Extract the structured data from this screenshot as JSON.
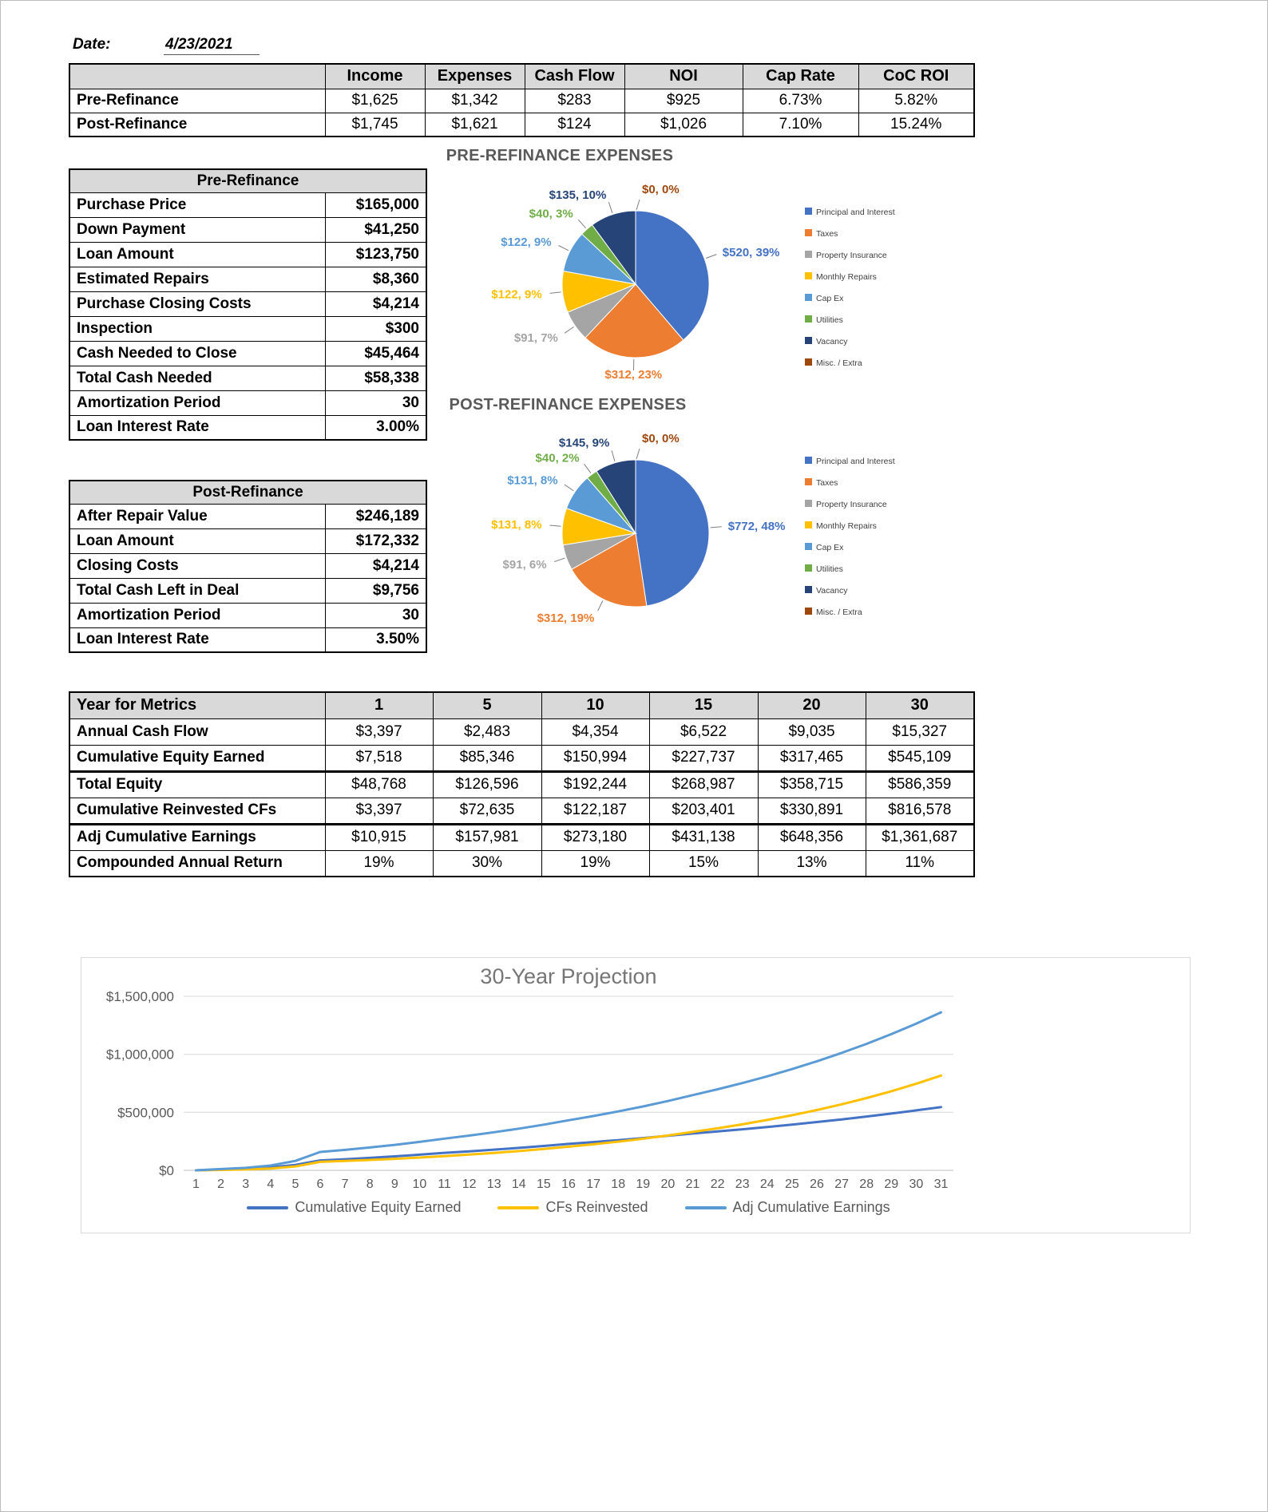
{
  "page": {
    "date_label": "Date:",
    "date_value": "4/23/2021"
  },
  "summary": {
    "columns": [
      "Income",
      "Expenses",
      "Cash Flow",
      "NOI",
      "Cap Rate",
      "CoC ROI"
    ],
    "rows": [
      {
        "label": "Pre-Refinance",
        "values": [
          "$1,625",
          "$1,342",
          "$283",
          "$925",
          "6.73%",
          "5.82%"
        ]
      },
      {
        "label": "Post-Refinance",
        "values": [
          "$1,745",
          "$1,621",
          "$124",
          "$1,026",
          "7.10%",
          "15.24%"
        ]
      }
    ]
  },
  "pre_refinance": {
    "title": "Pre-Refinance",
    "rows": [
      {
        "label": "Purchase Price",
        "value": "$165,000"
      },
      {
        "label": "Down Payment",
        "value": "$41,250"
      },
      {
        "label": "Loan Amount",
        "value": "$123,750"
      },
      {
        "label": "Estimated Repairs",
        "value": "$8,360"
      },
      {
        "label": "Purchase Closing Costs",
        "value": "$4,214"
      },
      {
        "label": "Inspection",
        "value": "$300"
      },
      {
        "label": "Cash Needed to Close",
        "value": "$45,464"
      },
      {
        "label": "Total Cash Needed",
        "value": "$58,338"
      },
      {
        "label": "Amortization Period",
        "value": "30"
      },
      {
        "label": "Loan Interest Rate",
        "value": "3.00%"
      }
    ]
  },
  "post_refinance": {
    "title": "Post-Refinance",
    "rows": [
      {
        "label": "After Repair Value",
        "value": "$246,189"
      },
      {
        "label": "Loan Amount",
        "value": "$172,332"
      },
      {
        "label": "Closing Costs",
        "value": "$4,214"
      },
      {
        "label": "Total Cash Left in Deal",
        "value": "$9,756"
      },
      {
        "label": "Amortization Period",
        "value": "30"
      },
      {
        "label": "Loan Interest Rate",
        "value": "3.50%"
      }
    ]
  },
  "metrics": {
    "header_label": "Year for Metrics",
    "years": [
      "1",
      "5",
      "10",
      "15",
      "20",
      "30"
    ],
    "rows": [
      {
        "label": "Annual Cash Flow",
        "values": [
          "$3,397",
          "$2,483",
          "$4,354",
          "$6,522",
          "$9,035",
          "$15,327"
        ]
      },
      {
        "label": "Cumulative Equity Earned",
        "values": [
          "$7,518",
          "$85,346",
          "$150,994",
          "$227,737",
          "$317,465",
          "$545,109"
        ]
      },
      {
        "label": "Total Equity",
        "values": [
          "$48,768",
          "$126,596",
          "$192,244",
          "$268,987",
          "$358,715",
          "$586,359"
        ]
      },
      {
        "label": "Cumulative Reinvested CFs",
        "values": [
          "$3,397",
          "$72,635",
          "$122,187",
          "$203,401",
          "$330,891",
          "$816,578"
        ]
      },
      {
        "label": "Adj Cumulative Earnings",
        "values": [
          "$10,915",
          "$157,981",
          "$273,180",
          "$431,138",
          "$648,356",
          "$1,361,687"
        ]
      },
      {
        "label": "Compounded Annual Return",
        "values": [
          "19%",
          "30%",
          "19%",
          "15%",
          "13%",
          "11%"
        ]
      }
    ]
  },
  "chart_data": [
    {
      "type": "pie",
      "title": "PRE-REFINANCE EXPENSES",
      "legend": [
        "Principal and Interest",
        "Taxes",
        "Property Insurance",
        "Monthly Repairs",
        "Cap Ex",
        "Utilities",
        "Vacancy",
        "Misc. / Extra"
      ],
      "values": [
        520,
        312,
        91,
        122,
        122,
        40,
        135,
        0
      ],
      "labels": [
        "$520, 39%",
        "$312, 23%",
        "$91, 7%",
        "$122, 9%",
        "$122, 9%",
        "$40, 3%",
        "$135, 10%",
        "$0, 0%"
      ],
      "colors": [
        "#4472C4",
        "#ED7D31",
        "#A5A5A5",
        "#FFC000",
        "#5B9BD5",
        "#70AD47",
        "#264478",
        "#9E480E"
      ]
    },
    {
      "type": "pie",
      "title": "POST-REFINANCE EXPENSES",
      "legend": [
        "Principal and Interest",
        "Taxes",
        "Property Insurance",
        "Monthly Repairs",
        "Cap Ex",
        "Utilities",
        "Vacancy",
        "Misc. / Extra"
      ],
      "values": [
        772,
        312,
        91,
        131,
        131,
        40,
        145,
        0
      ],
      "labels": [
        "$772, 48%",
        "$312, 19%",
        "$91, 6%",
        "$131, 8%",
        "$131, 8%",
        "$40, 2%",
        "$145, 9%",
        "$0, 0%"
      ],
      "colors": [
        "#4472C4",
        "#ED7D31",
        "#A5A5A5",
        "#FFC000",
        "#5B9BD5",
        "#70AD47",
        "#264478",
        "#9E480E"
      ]
    },
    {
      "type": "line",
      "title": "30-Year Projection",
      "x_ticks": [
        "1",
        "2",
        "3",
        "4",
        "5",
        "6",
        "7",
        "8",
        "9",
        "10",
        "11",
        "12",
        "13",
        "14",
        "15",
        "16",
        "17",
        "18",
        "19",
        "20",
        "21",
        "22",
        "23",
        "24",
        "25",
        "26",
        "27",
        "28",
        "29",
        "30",
        "31"
      ],
      "y_ticks": [
        {
          "label": "$0",
          "value": 0
        },
        {
          "label": "$500,000",
          "value": 500000
        },
        {
          "label": "$1,000,000",
          "value": 1000000
        },
        {
          "label": "$1,500,000",
          "value": 1500000
        }
      ],
      "ylim": [
        0,
        1500000
      ],
      "anchor_ticks": [
        1,
        2,
        6,
        11,
        16,
        21,
        31
      ],
      "series": [
        {
          "name": "Cumulative Equity Earned",
          "color": "#4472C4",
          "anchor_values": [
            0,
            7518,
            85346,
            150994,
            227737,
            317465,
            545109
          ]
        },
        {
          "name": "CFs Reinvested",
          "color": "#FFC000",
          "anchor_values": [
            0,
            3397,
            72635,
            122187,
            203401,
            330891,
            816578
          ]
        },
        {
          "name": "Adj Cumulative Earnings",
          "color": "#5B9BD5",
          "anchor_values": [
            0,
            10915,
            157981,
            273180,
            431138,
            648356,
            1361687
          ]
        }
      ]
    }
  ]
}
